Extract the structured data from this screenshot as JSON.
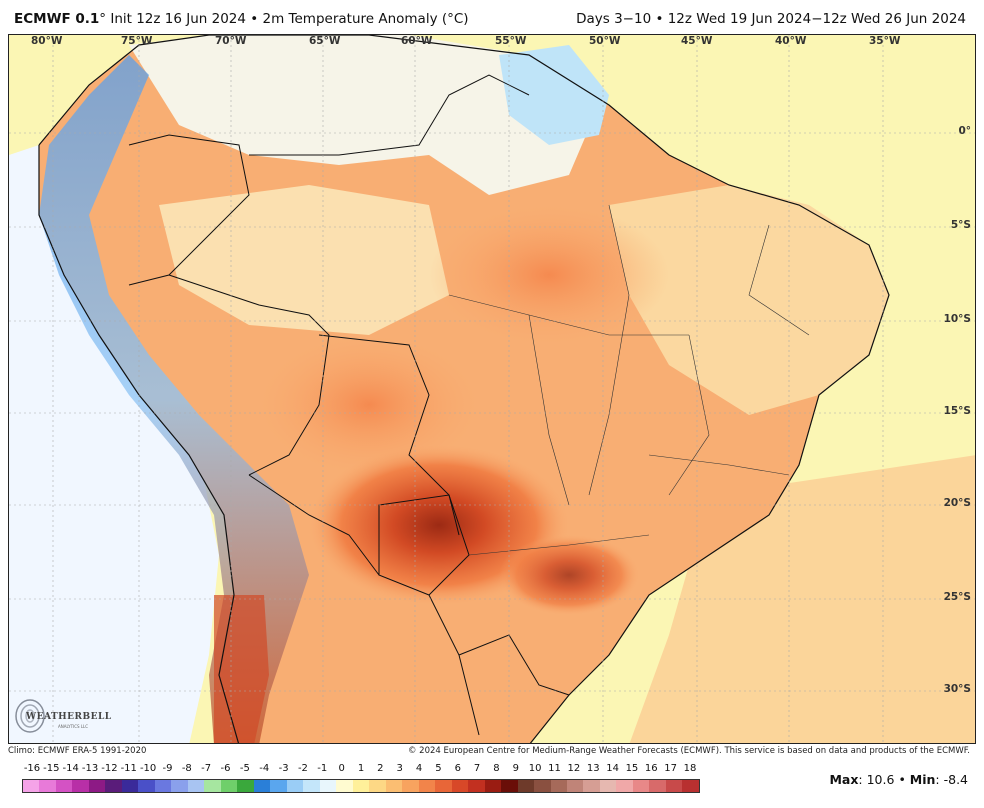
{
  "header": {
    "model": "ECMWF 0.1",
    "init_text": "° Init 12z 16 Jun 2024 • 2m Temperature Anomaly (°C)",
    "valid_text": "Days 3−10 • 12z Wed 19 Jun 2024−12z Wed 26 Jun 2024"
  },
  "map": {
    "lon_labels": [
      "80°W",
      "75°W",
      "70°W",
      "65°W",
      "60°W",
      "55°W",
      "50°W",
      "45°W",
      "40°W",
      "35°W"
    ],
    "lat_labels": [
      "0°",
      "5°S",
      "10°S",
      "15°S",
      "20°S",
      "25°S",
      "30°S"
    ],
    "ocean_color": "#fbf6b4",
    "land_warm_color": "#f7a56a",
    "hot_core_color": "#b0301a"
  },
  "logo": {
    "text": "WEATHERBELL",
    "subtext": "ANALYTICS LLC"
  },
  "footer": {
    "climo": "Climo: ECMWF ERA-5 1991-2020",
    "copyright": "© 2024 European Centre for Medium-Range Weather Forecasts (ECMWF). This service is based on data and products of the ECMWF."
  },
  "colorbar": {
    "ticks": [
      "-16",
      "-15",
      "-14",
      "-13",
      "-12",
      "-11",
      "-10",
      "-9",
      "-8",
      "-7",
      "-6",
      "-5",
      "-4",
      "-3",
      "-2",
      "-1",
      "0",
      "1",
      "2",
      "3",
      "4",
      "5",
      "6",
      "7",
      "8",
      "9",
      "10",
      "11",
      "12",
      "13",
      "14",
      "15",
      "16",
      "17",
      "18"
    ],
    "colors": [
      "#f5a3e8",
      "#e87ad9",
      "#d452c4",
      "#b82fa7",
      "#8d1a85",
      "#5a1c7a",
      "#3a2a9a",
      "#4a50c8",
      "#6a78e0",
      "#8aa0ec",
      "#a8c4f2",
      "#a6e6a0",
      "#6fcf6a",
      "#3aa83c",
      "#2a7fd8",
      "#5aa6ee",
      "#9acdf6",
      "#c4e6fa",
      "#e8f6fc",
      "#fffbd0",
      "#fff09a",
      "#fdd885",
      "#fbbe72",
      "#f8a35f",
      "#f2844a",
      "#e86638",
      "#d84828",
      "#c23020",
      "#9a1c12",
      "#6a0e08",
      "#6e3a2a",
      "#8a5040",
      "#a66a5a",
      "#c08478",
      "#d69e94",
      "#e6b8b0",
      "#f0a8a8",
      "#e88888",
      "#d86a6a",
      "#c84a4a",
      "#b83030"
    ],
    "stats_max_label": "Max",
    "stats_max": "10.6",
    "stats_sep": "•",
    "stats_min_label": "Min",
    "stats_min": "-8.4"
  }
}
